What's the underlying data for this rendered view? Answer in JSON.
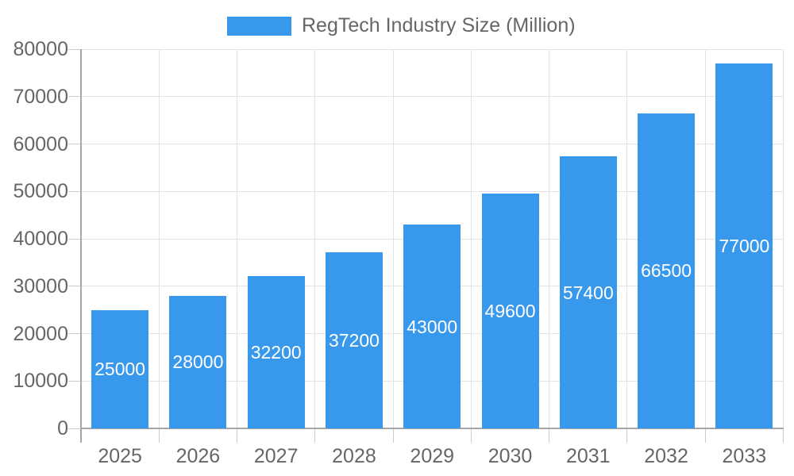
{
  "chart_data": {
    "type": "bar",
    "title": "RegTech Industry Size (Million)",
    "categories": [
      "2025",
      "2026",
      "2027",
      "2028",
      "2029",
      "2030",
      "2031",
      "2032",
      "2033"
    ],
    "values": [
      25000,
      28000,
      32200,
      37200,
      43000,
      49600,
      57400,
      66500,
      77000
    ],
    "bar_labels": [
      "25000",
      "28000",
      "32200",
      "37200",
      "43000",
      "49600",
      "57400",
      "66500",
      "77000"
    ],
    "xlabel": "",
    "ylabel": "",
    "ylim": [
      0,
      80000
    ],
    "yticks": [
      0,
      10000,
      20000,
      30000,
      40000,
      50000,
      60000,
      70000,
      80000
    ],
    "grid": "horizontal and vertical light gray gridlines",
    "legend_position": "top-center",
    "colors": {
      "bar": "#3898EC",
      "grid": "#E3E3E3",
      "axis": "#A6A6A6",
      "tick": "#CCCCCC",
      "text": "#666666",
      "bar_label": "#FFFFFF",
      "background": "#FFFFFF"
    }
  }
}
